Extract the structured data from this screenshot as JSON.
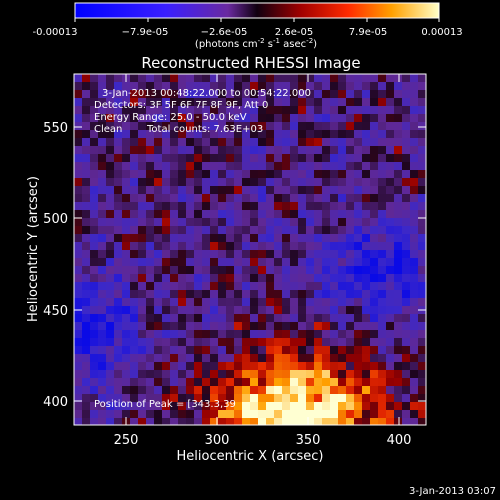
{
  "colorbar": {
    "tick_labels": [
      "-0.00013",
      "−7.9e-05",
      "−2.6e-05",
      "2.6e-05",
      "7.9e-05",
      "0.00013"
    ],
    "unit_main": "(photons cm",
    "unit_sup1": "-2",
    "unit_mid": " s",
    "unit_sup2": "-1",
    "unit_mid2": " asec",
    "unit_sup3": "-2",
    "unit_end": ")"
  },
  "title": "Reconstructed RHESSI Image",
  "annotations": {
    "time_range": "3-Jan-2013 00:48:22.000 to 00:54:22.000",
    "detectors": "Detectors: 3F 5F 6F 7F 8F 9F, Att 0",
    "energy": "Energy Range: 25.0 - 50.0 keV",
    "algorithm": "Clean",
    "total_counts": "Total counts: 7.63E+03",
    "peak": "Position of Peak = [343.3,",
    "peak_value_cut": "39"
  },
  "x_axis": {
    "label": "Heliocentric X (arcsec)",
    "ticks": [
      "250",
      "300",
      "350",
      "400"
    ]
  },
  "y_axis": {
    "label": "Heliocentric Y (arcsec)",
    "ticks": [
      "400",
      "450",
      "500",
      "550"
    ]
  },
  "footer_date": "3-Jan-2013 03:07",
  "colors": {
    "background": "#000000",
    "text": "#ffffff"
  }
}
